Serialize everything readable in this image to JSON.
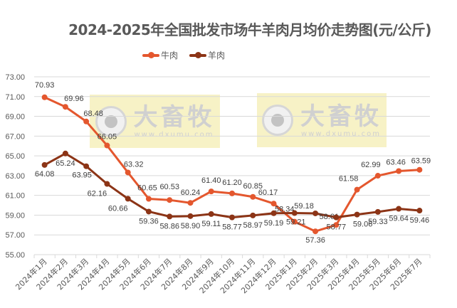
{
  "chart_data": {
    "type": "line",
    "title": "2024-2025年全国批发市场牛羊肉月均价走势图(元/公斤)",
    "xlabel": "",
    "ylabel": "",
    "ylim": [
      55,
      73
    ],
    "yticks": [
      "73.00",
      "71.00",
      "69.00",
      "67.00",
      "65.00",
      "63.00",
      "61.00",
      "59.00",
      "57.00",
      "55.00"
    ],
    "grid": true,
    "legend_position": "top",
    "categories": [
      "2024年1月",
      "2024年2月",
      "2024年3月",
      "2024年4月",
      "2024年5月",
      "2024年6月",
      "2024年7月",
      "2024年8月",
      "2024年9月",
      "2024年10月",
      "2024年11月",
      "2024年12月",
      "2025年1月",
      "2025年2月",
      "2025年3月",
      "2025年4月",
      "2025年5月",
      "2025年6月",
      "2025年7月"
    ],
    "series": [
      {
        "name": "牛肉",
        "color": "#E4572E",
        "values": [
          70.93,
          69.96,
          68.48,
          66.05,
          63.32,
          60.65,
          60.53,
          60.24,
          61.4,
          61.2,
          60.85,
          60.17,
          58.34,
          57.36,
          58.01,
          61.58,
          62.99,
          63.46,
          63.59
        ]
      },
      {
        "name": "羊肉",
        "color": "#8C3416",
        "values": [
          64.08,
          65.24,
          63.95,
          62.16,
          60.66,
          59.36,
          58.86,
          58.9,
          59.11,
          58.77,
          58.97,
          59.19,
          59.21,
          59.18,
          58.77,
          59.06,
          59.33,
          59.64,
          59.46
        ]
      }
    ]
  },
  "legend": [
    {
      "label": "牛肉",
      "color": "#E4572E"
    },
    {
      "label": "羊肉",
      "color": "#8C3416"
    }
  ],
  "watermark": {
    "brand": "大畜牧",
    "url": "www.dxumu.com"
  }
}
